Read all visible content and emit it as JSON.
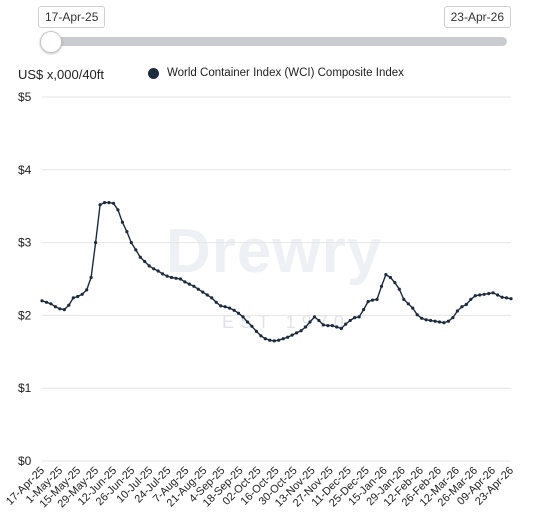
{
  "range_selector": {
    "start_date": "17-Apr-25",
    "end_date": "23-Apr-26"
  },
  "colors": {
    "series_line": "#1d2b3f",
    "grid": "#e6e6e6",
    "slider_track": "#c8cbd0"
  },
  "watermark": {
    "brand": "Drewry",
    "tagline": "EST 1970"
  },
  "chart_data": {
    "type": "line",
    "ylabel": "US$ x,000/40ft",
    "ylim": [
      0,
      5
    ],
    "y_ticks": [
      "$0",
      "$1",
      "$2",
      "$3",
      "$4",
      "$5"
    ],
    "grid": true,
    "legend_placement": "top",
    "x_tick_labels": [
      "17-Apr-25",
      "1-May-25",
      "15-May-25",
      "29-May-25",
      "12-Jun-25",
      "26-Jun-25",
      "10-Jul-25",
      "24-Jul-25",
      "7-Aug-25",
      "21-Aug-25",
      "4-Sep-25",
      "18-Sep-25",
      "02-Oct-25",
      "16-Oct-25",
      "30-Oct-25",
      "13-Nov-25",
      "27-Nov-25",
      "11-Dec-25",
      "25-Dec-25",
      "15-Jan-26",
      "29-Jan-26",
      "12-Feb-26",
      "26-Feb-26",
      "12-Mar-26",
      "26-Mar-26",
      "09-Apr-26",
      "23-Apr-26"
    ],
    "series": [
      {
        "name": "World Container Index (WCI) Composite Index",
        "values": [
          2.2,
          2.18,
          2.16,
          2.12,
          2.09,
          2.08,
          2.14,
          2.24,
          2.26,
          2.29,
          2.35,
          2.52,
          3.0,
          3.52,
          3.55,
          3.55,
          3.54,
          3.45,
          3.28,
          3.15,
          3.0,
          2.9,
          2.8,
          2.74,
          2.68,
          2.64,
          2.61,
          2.57,
          2.54,
          2.52,
          2.51,
          2.5,
          2.46,
          2.43,
          2.4,
          2.36,
          2.32,
          2.28,
          2.24,
          2.18,
          2.13,
          2.12,
          2.1,
          2.07,
          2.03,
          1.98,
          1.91,
          1.85,
          1.78,
          1.72,
          1.68,
          1.66,
          1.65,
          1.66,
          1.68,
          1.7,
          1.73,
          1.76,
          1.79,
          1.84,
          1.91,
          1.98,
          1.93,
          1.87,
          1.86,
          1.86,
          1.84,
          1.82,
          1.88,
          1.93,
          1.97,
          1.98,
          2.08,
          2.19,
          2.21,
          2.22,
          2.4,
          2.56,
          2.52,
          2.45,
          2.36,
          2.22,
          2.16,
          2.1,
          2.01,
          1.96,
          1.94,
          1.93,
          1.92,
          1.91,
          1.9,
          1.92,
          1.97,
          2.06,
          2.12,
          2.15,
          2.22,
          2.27,
          2.28,
          2.29,
          2.3,
          2.31,
          2.28,
          2.25,
          2.24,
          2.23
        ]
      }
    ]
  }
}
